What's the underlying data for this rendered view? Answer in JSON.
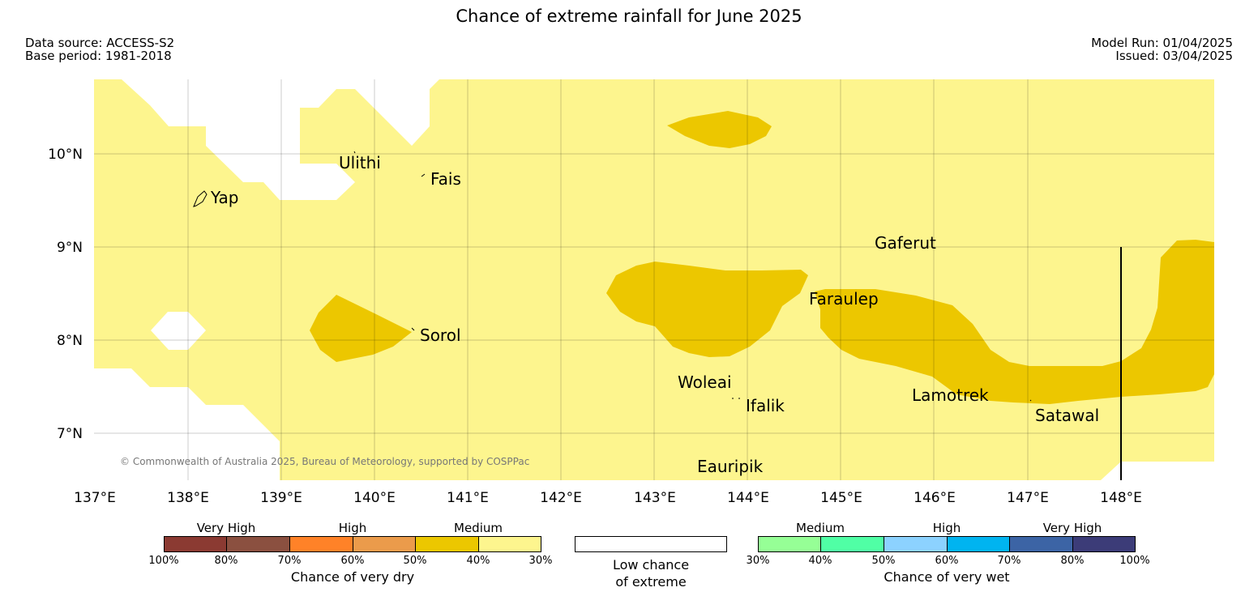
{
  "title": "Chance of extreme rainfall for June 2025",
  "meta": {
    "data_source": "Data source: ACCESS-S2",
    "base_period": "Base period: 1981-2018",
    "model_run": "Model Run: 01/04/2025",
    "issued": "Issued: 03/04/2025"
  },
  "map": {
    "lon_ticks": [
      "137°E",
      "138°E",
      "139°E",
      "140°E",
      "141°E",
      "142°E",
      "143°E",
      "144°E",
      "145°E",
      "146°E",
      "147°E",
      "148°E"
    ],
    "lat_ticks": [
      "10°N",
      "9°N",
      "8°N",
      "7°N"
    ],
    "places": [
      "Ulithi",
      "Fais",
      "Yap",
      "Gaferut",
      "Faraulep",
      "Sorol",
      "Woleai",
      "Ifalik",
      "Lamotrek",
      "Satawal",
      "Eauripik"
    ],
    "copyright": "© Commonwealth of Australia 2025, Bureau of Meteorology, supported by COSPPac",
    "colors": {
      "medium_30_40": "#fdf58e",
      "medium_40_50": "#ecc700",
      "low": "#ffffff"
    }
  },
  "legend": {
    "dry": {
      "groups": [
        "Very High",
        "High",
        "Medium"
      ],
      "ticks": [
        "100%",
        "80%",
        "70%",
        "60%",
        "50%",
        "40%",
        "30%"
      ],
      "colors": [
        "#8b3a32",
        "#8b5040",
        "#ff8228",
        "#eb9b4b",
        "#ecc700",
        "#fdf58e"
      ],
      "caption": "Chance of very dry"
    },
    "low": {
      "caption_line1": "Low chance",
      "caption_line2": "of extreme"
    },
    "wet": {
      "groups": [
        "Medium",
        "High",
        "Very High"
      ],
      "ticks": [
        "30%",
        "40%",
        "50%",
        "60%",
        "70%",
        "80%",
        "100%"
      ],
      "colors": [
        "#96ff96",
        "#50ffa5",
        "#8cd2ff",
        "#00b4f0",
        "#3c64a5",
        "#3c3c78"
      ],
      "caption": "Chance of very wet"
    }
  }
}
